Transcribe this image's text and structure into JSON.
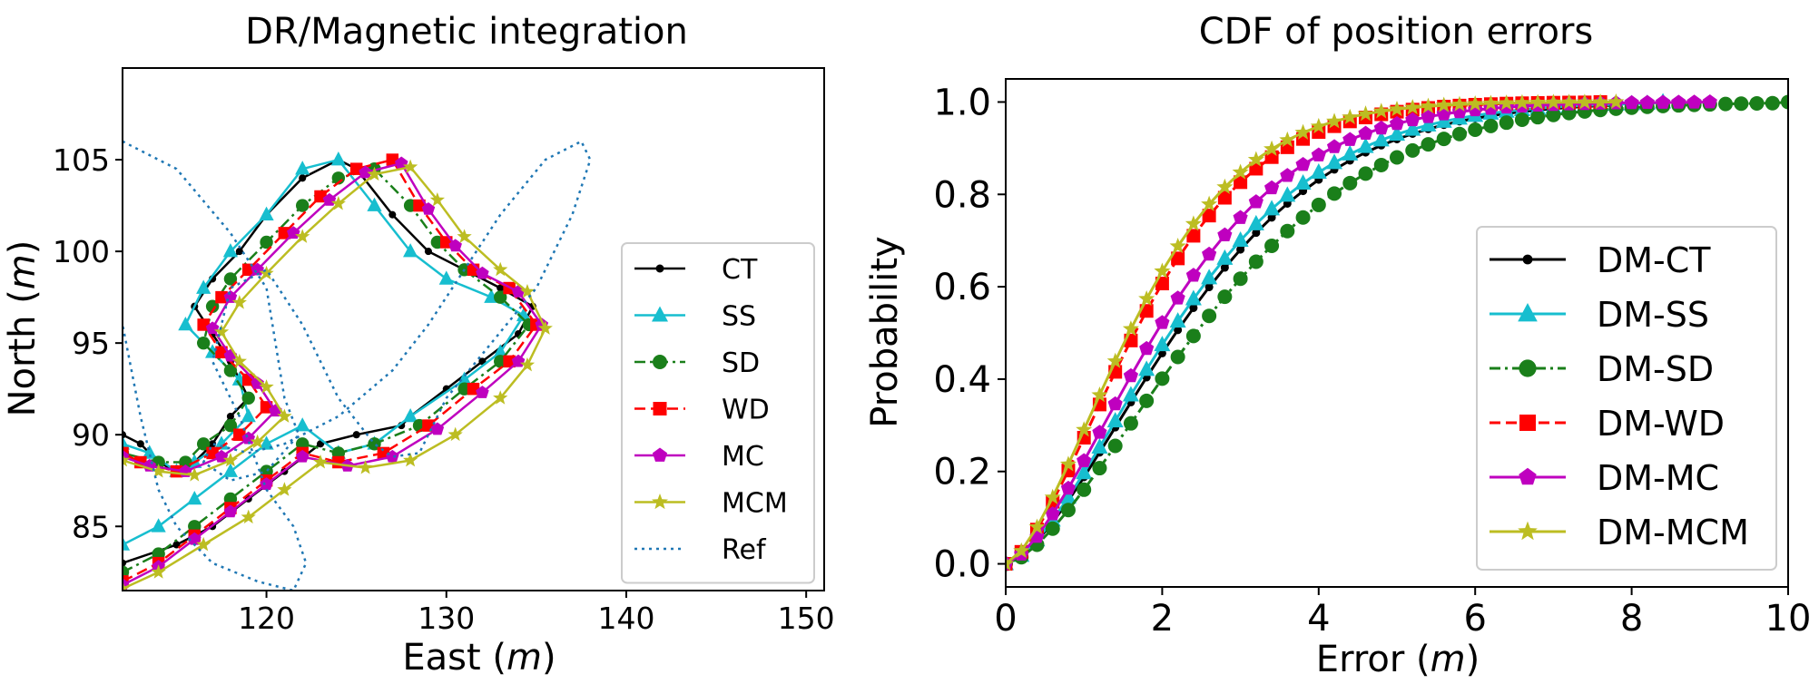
{
  "chart_data": [
    {
      "type": "line",
      "title": "DR/Magnetic integration",
      "xlabel": "East",
      "xlabel_unit": "m",
      "ylabel": "North",
      "ylabel_unit": "m",
      "xlim": [
        112,
        151
      ],
      "ylim": [
        81.5,
        110
      ],
      "xticks": [
        120,
        130,
        140,
        150
      ],
      "yticks": [
        85,
        90,
        95,
        100,
        105
      ],
      "legend_position": "right",
      "series": [
        {
          "name": "CT",
          "color": "#000000",
          "marker": "dot",
          "line": "solid",
          "x": [
            112,
            115,
            117,
            119,
            121,
            123,
            125,
            127.5,
            128,
            130,
            132,
            134,
            134.8,
            133,
            131,
            129,
            127,
            125,
            124,
            122,
            120,
            118.5,
            117,
            116,
            117,
            118,
            119,
            118,
            117,
            116,
            115,
            114,
            113,
            112
          ],
          "y": [
            83,
            84,
            85,
            86.5,
            88,
            89.5,
            90,
            90.5,
            91,
            92.5,
            94,
            95.5,
            97,
            98,
            99,
            100,
            102,
            104.5,
            105,
            104,
            102,
            100,
            98.5,
            97,
            95.5,
            94,
            92,
            91,
            89.5,
            88.5,
            88,
            88.5,
            89.5,
            90
          ]
        },
        {
          "name": "SS",
          "color": "#17becf",
          "marker": "triangle",
          "line": "solid",
          "x": [
            112,
            114,
            116,
            118,
            120,
            122,
            124,
            126,
            128,
            131,
            133,
            134.3,
            132.5,
            130,
            128,
            126,
            124,
            122,
            120,
            118,
            116.5,
            115.5,
            117,
            118.5,
            119,
            117.5,
            116,
            115,
            113.5,
            112
          ],
          "y": [
            84,
            85,
            86.5,
            88,
            89.5,
            90.5,
            89,
            89.5,
            91,
            93,
            94.5,
            96.5,
            97.5,
            98.5,
            100,
            102.5,
            105,
            104.5,
            102,
            100,
            98,
            96,
            94.5,
            93,
            91,
            89.5,
            88.5,
            88,
            89,
            89.5
          ]
        },
        {
          "name": "SD",
          "color": "#1a7f1a",
          "marker": "circle",
          "line": "dashdot",
          "x": [
            112,
            114,
            116,
            118,
            120,
            122,
            124,
            126,
            128.5,
            131,
            133,
            134.6,
            133,
            131,
            129.5,
            128,
            126,
            124,
            122,
            120,
            118,
            117,
            116.5,
            118,
            119,
            118,
            116.5,
            115.5,
            114,
            112
          ],
          "y": [
            82.5,
            83.5,
            85,
            86.5,
            88,
            89.5,
            89,
            89.5,
            90.5,
            92.5,
            94,
            96,
            97.5,
            99,
            100.5,
            102.5,
            104.5,
            104,
            102.5,
            100.5,
            98.5,
            97,
            95,
            93.5,
            92,
            90.5,
            89.5,
            88.5,
            88.5,
            89
          ]
        },
        {
          "name": "WD",
          "color": "#ff0000",
          "marker": "square",
          "line": "dashed",
          "x": [
            112,
            114,
            116,
            118,
            120,
            122,
            124,
            126.5,
            129,
            131.5,
            133.5,
            135,
            133.5,
            131.5,
            130,
            128.5,
            127,
            125,
            123,
            121,
            119,
            117.5,
            116.5,
            117.5,
            119,
            120,
            118.5,
            117,
            115,
            113,
            112
          ],
          "y": [
            82,
            83,
            84.5,
            86,
            87.5,
            89,
            88.5,
            89,
            90.5,
            92.5,
            94,
            96,
            98,
            99,
            100.5,
            102.5,
            105,
            104.5,
            103,
            101,
            99,
            97.5,
            96,
            94.5,
            93,
            91.5,
            90,
            89,
            88,
            88.5,
            89
          ]
        },
        {
          "name": "MC",
          "color": "#bf00bf",
          "marker": "pentagon",
          "line": "solid",
          "x": [
            112,
            114,
            116,
            118,
            120,
            122,
            124.5,
            127,
            129.5,
            132,
            134,
            135.3,
            134,
            132,
            130.5,
            129,
            127.5,
            125.5,
            123.5,
            121.5,
            119.5,
            118,
            117,
            118,
            119.5,
            120.5,
            119,
            117.5,
            115.5,
            113.5,
            112
          ],
          "y": [
            81.8,
            82.8,
            84.3,
            85.8,
            87.3,
            88.8,
            88.3,
            88.8,
            90.3,
            92.3,
            94,
            96,
            97.8,
            98.8,
            100.3,
            102.3,
            104.8,
            104.3,
            102.8,
            101,
            99,
            97.5,
            95.8,
            94.3,
            92.8,
            91.3,
            89.8,
            88.8,
            88,
            88.3,
            88.8
          ]
        },
        {
          "name": "MCM",
          "color": "#bcbd22",
          "marker": "star",
          "line": "solid",
          "x": [
            112,
            114,
            116.5,
            119,
            121,
            123,
            125.5,
            128,
            130.5,
            133,
            134.5,
            135.5,
            134.5,
            133,
            131,
            129.5,
            128,
            126,
            124,
            122,
            120,
            118.5,
            117.5,
            118.5,
            120,
            121,
            119.5,
            118,
            116,
            114,
            112
          ],
          "y": [
            81.6,
            82.5,
            84,
            85.5,
            87,
            88.5,
            88.2,
            88.6,
            90,
            92,
            93.8,
            95.8,
            97.8,
            99,
            100.8,
            102.8,
            104.6,
            104.2,
            102.6,
            100.8,
            98.8,
            97.2,
            95.6,
            94,
            92.6,
            91,
            89.6,
            88.6,
            87.8,
            88,
            88.6
          ]
        },
        {
          "name": "Ref",
          "color": "#1f77b4",
          "marker": "none",
          "line": "dotted",
          "x": [
            112,
            115,
            118,
            120,
            121,
            121.8,
            120,
            118,
            116.5,
            117,
            119,
            121,
            124,
            127,
            129,
            131,
            133,
            135.5,
            137.5,
            138,
            137,
            135,
            132.5,
            130,
            128.5,
            127,
            126,
            124,
            122,
            120,
            118,
            117,
            118.5,
            120,
            121.5,
            122.2,
            121.5,
            119.5,
            117,
            115,
            114,
            113,
            112
          ],
          "y": [
            106,
            104.5,
            101,
            98,
            92,
            90,
            88,
            87.5,
            88.5,
            89.5,
            89,
            89.5,
            91,
            93.5,
            96,
            99,
            102,
            105,
            106,
            105,
            102,
            98,
            95,
            92,
            89,
            88.8,
            89.5,
            92,
            96,
            99,
            98,
            94,
            91,
            87,
            85,
            83,
            81.5,
            82,
            83,
            85,
            87,
            91,
            96
          ]
        }
      ]
    },
    {
      "type": "line",
      "title": "CDF of position errors",
      "xlabel": "Error",
      "xlabel_unit": "m",
      "ylabel": "Probability",
      "xlim": [
        0,
        10
      ],
      "ylim": [
        -0.05,
        1.05
      ],
      "xticks": [
        0,
        2,
        4,
        6,
        8,
        10
      ],
      "yticks": [
        "0.0",
        "0.2",
        "0.4",
        "0.6",
        "0.8",
        "1.0"
      ],
      "legend_position": "lower right",
      "series": [
        {
          "name": "DM-CT",
          "color": "#000000",
          "marker": "dot",
          "line": "solid",
          "scale": 1.45,
          "xmax": 8.0
        },
        {
          "name": "DM-SS",
          "color": "#17becf",
          "marker": "triangle",
          "line": "solid",
          "scale": 1.4,
          "xmax": 8.5
        },
        {
          "name": "DM-SD",
          "color": "#1a7f1a",
          "marker": "circle",
          "line": "dashdot",
          "scale": 1.62,
          "xmax": 10.0
        },
        {
          "name": "DM-WD",
          "color": "#ff0000",
          "marker": "square",
          "line": "dashed",
          "scale": 1.1,
          "xmax": 7.6
        },
        {
          "name": "DM-MC",
          "color": "#bf00bf",
          "marker": "pentagon",
          "line": "solid",
          "scale": 1.28,
          "xmax": 9.0
        },
        {
          "name": "DM-MCM",
          "color": "#bcbd22",
          "marker": "star",
          "line": "solid",
          "scale": 1.05,
          "xmax": 7.8
        }
      ]
    }
  ]
}
